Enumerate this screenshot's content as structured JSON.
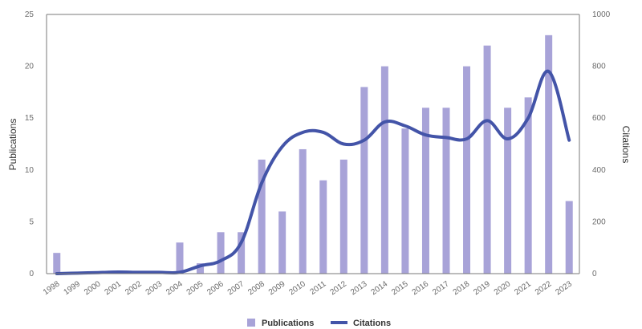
{
  "colors": {
    "bar": "#a8a3d8",
    "line": "#4354a8",
    "axis": "#7a7a7a",
    "text": "#333333"
  },
  "chart_data": {
    "type": "bar",
    "categories": [
      "1998",
      "1999",
      "2000",
      "2001",
      "2002",
      "2003",
      "2004",
      "2005",
      "2006",
      "2007",
      "2008",
      "2009",
      "2010",
      "2011",
      "2012",
      "2013",
      "2014",
      "2015",
      "2016",
      "2017",
      "2018",
      "2019",
      "2020",
      "2021",
      "2022",
      "2023"
    ],
    "series": [
      {
        "name": "Publications",
        "type": "bar",
        "axis": "left",
        "values": [
          2,
          0,
          0,
          0,
          0,
          0,
          3,
          1,
          4,
          4,
          11,
          6,
          12,
          9,
          11,
          18,
          20,
          14,
          16,
          16,
          20,
          22,
          16,
          17,
          23,
          7
        ]
      },
      {
        "name": "Citations",
        "type": "line",
        "axis": "right",
        "values": [
          0,
          2,
          4,
          6,
          5,
          5,
          5,
          30,
          50,
          120,
          350,
          490,
          545,
          545,
          500,
          515,
          585,
          570,
          535,
          525,
          520,
          590,
          520,
          600,
          780,
          515
        ]
      }
    ],
    "ylabel": "Publications",
    "y2label": "Citations",
    "ylim": [
      0,
      25
    ],
    "y2lim": [
      0,
      1000
    ],
    "yticks": [
      "0",
      "5",
      "10",
      "15",
      "20",
      "25"
    ],
    "y2ticks": [
      "0",
      "200",
      "400",
      "600",
      "800",
      "1000"
    ],
    "legend_position": "bottom",
    "grid": false
  }
}
